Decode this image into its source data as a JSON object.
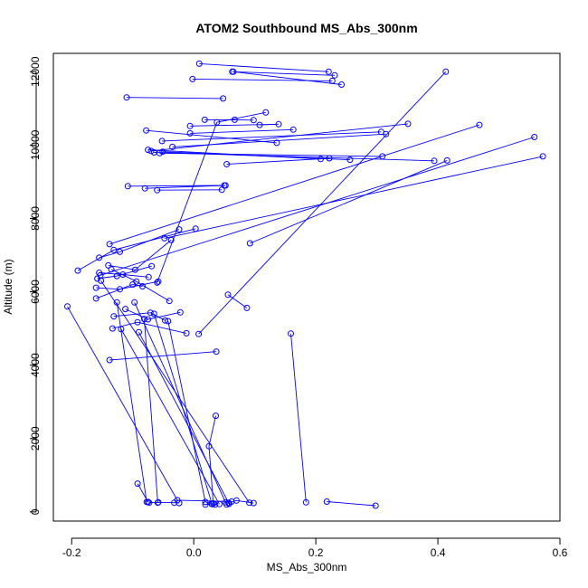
{
  "chart_data": {
    "type": "line",
    "title": "ATOM2 Southbound MS_Abs_300nm",
    "xlabel": "MS_Abs_300nm",
    "ylabel": "Altitude (m)",
    "xlim": [
      -0.23,
      0.6
    ],
    "ylim": [
      -250,
      12500
    ],
    "xticks": [
      -0.2,
      0.0,
      0.2,
      0.4,
      0.6
    ],
    "xtick_labels": [
      "-0.2",
      "0.0",
      "0.2",
      "0.4",
      "0.6"
    ],
    "yticks": [
      0,
      2000,
      4000,
      6000,
      8000,
      10000,
      12000
    ],
    "ytick_labels": [
      "0",
      "2000",
      "4000",
      "6000",
      "8000",
      "10000",
      "12000"
    ],
    "grid": false,
    "legend": "none",
    "line_color": "#0000ff",
    "marker": "open-circle",
    "series": [
      {
        "x": [
          0.009,
          0.221
        ],
        "y": [
          12220,
          12000
        ]
      },
      {
        "x": [
          0.063,
          0.231
        ],
        "y": [
          12000,
          11900
        ]
      },
      {
        "x": [
          -0.002,
          0.227
        ],
        "y": [
          11800,
          11750
        ]
      },
      {
        "x": [
          0.065,
          0.242
        ],
        "y": [
          12000,
          11650
        ]
      },
      {
        "x": [
          -0.11,
          0.048
        ],
        "y": [
          11300,
          11270
        ]
      },
      {
        "x": [
          0.413,
          0.008
        ],
        "y": [
          12000,
          4850
        ]
      },
      {
        "x": [
          0.018,
          0.067,
          0.098
        ],
        "y": [
          10690,
          10690,
          10680
        ]
      },
      {
        "x": [
          0.118,
          0.038,
          -0.06
        ],
        "y": [
          10890,
          10620,
          6250
        ]
      },
      {
        "x": [
          -0.006,
          0.139,
          0.108
        ],
        "y": [
          10520,
          10570,
          10550
        ]
      },
      {
        "x": [
          -0.006,
          0.163
        ],
        "y": [
          10320,
          10420
        ]
      },
      {
        "x": [
          -0.078,
          0.136
        ],
        "y": [
          10400,
          10060
        ]
      },
      {
        "x": [
          -0.052,
          0.307
        ],
        "y": [
          10110,
          10360
        ]
      },
      {
        "x": [
          -0.035,
          0.315
        ],
        "y": [
          9950,
          10300
        ]
      },
      {
        "x": [
          -0.07,
          0.351
        ],
        "y": [
          9840,
          10580
        ]
      },
      {
        "x": [
          -0.075,
          0.208
        ],
        "y": [
          9870,
          9620
        ]
      },
      {
        "x": [
          -0.051,
          0.256
        ],
        "y": [
          9820,
          9600
        ]
      },
      {
        "x": [
          -0.065,
          0.394
        ],
        "y": [
          9800,
          9570
        ]
      },
      {
        "x": [
          -0.056,
          0.309
        ],
        "y": [
          9780,
          9690
        ]
      },
      {
        "x": [
          0.054,
          0.222
        ],
        "y": [
          9480,
          9640
        ]
      },
      {
        "x": [
          -0.108,
          0.052
        ],
        "y": [
          8880,
          8900
        ]
      },
      {
        "x": [
          -0.08,
          0.05
        ],
        "y": [
          8820,
          8900
        ]
      },
      {
        "x": [
          -0.06,
          0.046
        ],
        "y": [
          8770,
          8780
        ]
      },
      {
        "x": [
          -0.048,
          0.572
        ],
        "y": [
          7460,
          9690
        ]
      },
      {
        "x": [
          -0.153,
          0.558
        ],
        "y": [
          6450,
          10220
        ]
      },
      {
        "x": [
          -0.138,
          0.468
        ],
        "y": [
          7300,
          10550
        ]
      },
      {
        "x": [
          0.092,
          0.415
        ],
        "y": [
          7320,
          9580
        ]
      },
      {
        "x": [
          -0.19,
          -0.131,
          0.003
        ],
        "y": [
          6580,
          7140,
          7720
        ]
      },
      {
        "x": [
          -0.155,
          -0.121,
          -0.024
        ],
        "y": [
          6930,
          7090,
          7700
        ]
      },
      {
        "x": [
          -0.14,
          -0.096,
          -0.037
        ],
        "y": [
          6720,
          6600,
          7410
        ]
      },
      {
        "x": [
          -0.155,
          -0.116,
          -0.074
        ],
        "y": [
          6520,
          6470,
          6400
        ]
      },
      {
        "x": [
          -0.158,
          -0.126,
          -0.069
        ],
        "y": [
          6360,
          6430,
          6700
        ]
      },
      {
        "x": [
          -0.16,
          -0.121,
          -0.058
        ],
        "y": [
          6110,
          6070,
          6280
        ]
      },
      {
        "x": [
          -0.135,
          -0.094,
          -0.04
        ],
        "y": [
          6610,
          6280,
          5750
        ]
      },
      {
        "x": [
          -0.16,
          -0.1,
          -0.084
        ],
        "y": [
          5820,
          6200,
          6150
        ]
      },
      {
        "x": [
          -0.207,
          -0.027,
          0.062
        ],
        "y": [
          5600,
          320,
          280
        ]
      },
      {
        "x": [
          -0.131,
          -0.071,
          -0.047
        ],
        "y": [
          5330,
          5430,
          5220
        ]
      },
      {
        "x": [
          -0.112,
          -0.075,
          -0.022
        ],
        "y": [
          5530,
          5250,
          5440
        ]
      },
      {
        "x": [
          -0.133,
          -0.092,
          -0.012
        ],
        "y": [
          5000,
          5170,
          4870
        ]
      },
      {
        "x": [
          -0.138,
          0.037
        ],
        "y": [
          4140,
          4370
        ]
      },
      {
        "x": [
          0.056,
          0.087
        ],
        "y": [
          5920,
          5560
        ]
      },
      {
        "x": [
          0.159,
          0.184
        ],
        "y": [
          4860,
          260
        ]
      },
      {
        "x": [
          -0.092,
          -0.075
        ],
        "y": [
          770,
          270
        ]
      },
      {
        "x": [
          -0.073,
          -0.058,
          -0.032,
          -0.024
        ],
        "y": [
          250,
          260,
          250,
          240
        ]
      },
      {
        "x": [
          0.036,
          0.025,
          0.032
        ],
        "y": [
          2620,
          1790,
          230
        ]
      },
      {
        "x": [
          0.019,
          0.029,
          0.035
        ],
        "y": [
          200,
          220,
          200
        ]
      },
      {
        "x": [
          0.054,
          0.057,
          0.07,
          0.098
        ],
        "y": [
          200,
          250,
          310,
          240
        ]
      },
      {
        "x": [
          0.218,
          0.298
        ],
        "y": [
          280,
          170
        ]
      },
      {
        "x": [
          -0.119,
          0.042
        ],
        "y": [
          4980,
          210
        ]
      },
      {
        "x": [
          -0.09,
          0.058
        ],
        "y": [
          4900,
          220
        ]
      },
      {
        "x": [
          -0.065,
          0.03
        ],
        "y": [
          5400,
          210
        ]
      },
      {
        "x": [
          -0.042,
          0.019
        ],
        "y": [
          5200,
          270
        ]
      },
      {
        "x": [
          -0.081,
          -0.059
        ],
        "y": [
          5260,
          250
        ]
      },
      {
        "x": [
          -0.152,
          0.091
        ],
        "y": [
          6300,
          250
        ]
      },
      {
        "x": [
          -0.126,
          -0.077
        ],
        "y": [
          5710,
          270
        ]
      },
      {
        "x": [
          -0.097,
          0.052
        ],
        "y": [
          5710,
          260
        ]
      }
    ]
  }
}
